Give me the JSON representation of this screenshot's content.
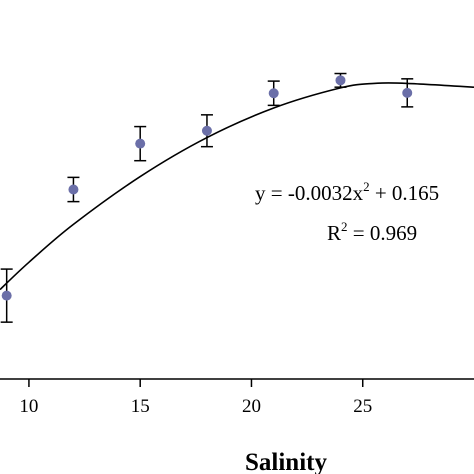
{
  "chart_data": {
    "type": "scatter",
    "title": "",
    "xlabel": "Salinity",
    "ylabel": "",
    "xlim": [
      8.7,
      30
    ],
    "ylim": [
      0,
      1
    ],
    "xticks": [
      "10",
      "15",
      "20",
      "25"
    ],
    "xtick_values": [
      10,
      15,
      20,
      25
    ],
    "grid": false,
    "legend": "none",
    "colors": {
      "marker": "#6b6fa8",
      "line": "#000000"
    },
    "series": [
      {
        "points": [
          {
            "x": 9,
            "y": 0.22,
            "err": 0.07
          },
          {
            "x": 12,
            "y": 0.5,
            "err": 0.032
          },
          {
            "x": 15,
            "y": 0.621,
            "err": 0.045
          },
          {
            "x": 18,
            "y": 0.655,
            "err": 0.042
          },
          {
            "x": 21,
            "y": 0.754,
            "err": 0.032
          },
          {
            "x": 24,
            "y": 0.788,
            "err": 0.018
          },
          {
            "x": 27,
            "y": 0.755,
            "err": 0.037
          }
        ]
      }
    ],
    "trendline": {
      "type": "polynomial",
      "x_start": 8.7,
      "x_end": 30,
      "curve": [
        {
          "x": 8.7,
          "y": 0.236
        },
        {
          "x": 10,
          "y": 0.308
        },
        {
          "x": 12,
          "y": 0.408
        },
        {
          "x": 15,
          "y": 0.534
        },
        {
          "x": 18,
          "y": 0.637
        },
        {
          "x": 21,
          "y": 0.715
        },
        {
          "x": 24,
          "y": 0.768
        },
        {
          "x": 25.5,
          "y": 0.78
        },
        {
          "x": 27,
          "y": 0.78
        },
        {
          "x": 30,
          "y": 0.77
        }
      ]
    },
    "annotations": {
      "eq_main": "y = -0.0032x",
      "eq_exp": "2",
      "eq_rest": " + 0.165",
      "r2_label": "R",
      "r2_exp": "2",
      "r2_value": " = 0.969"
    }
  }
}
